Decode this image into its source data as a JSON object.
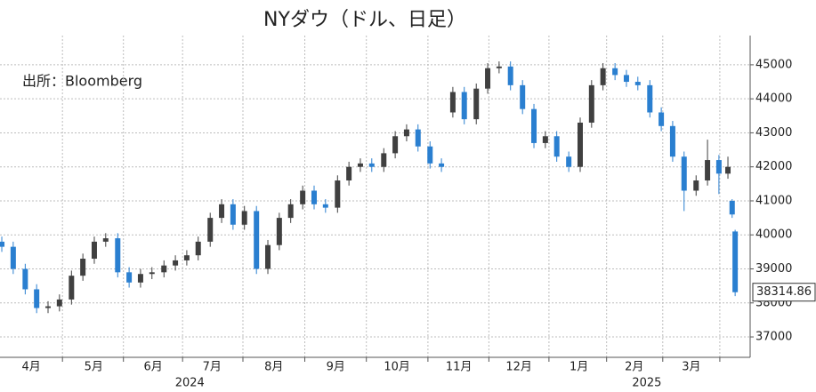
{
  "chart_data": {
    "type": "candlestick",
    "title": "NYダウ（ドル、日足）",
    "source": "出所：Bloomberg",
    "x": [
      3.01,
      3.2,
      3.4,
      3.59,
      3.78,
      3.97,
      4.17,
      4.36,
      4.55,
      4.74,
      4.94,
      5.13,
      5.32,
      5.51,
      5.71,
      5.9,
      6.09,
      6.28,
      6.48,
      6.67,
      6.86,
      7.05,
      7.25,
      7.44,
      7.63,
      7.82,
      8.02,
      8.21,
      8.4,
      8.6,
      8.79,
      8.98,
      9.17,
      9.37,
      9.56,
      9.75,
      9.94,
      10.14,
      10.33,
      10.52,
      10.71,
      10.91,
      11.1,
      11.29,
      11.48,
      11.68,
      11.87,
      12.06,
      12.25,
      12.45,
      12.64,
      12.83,
      13.02,
      13.22,
      13.41,
      13.6,
      13.8,
      13.99,
      14.18,
      14.37,
      14.57,
      14.76,
      14.95,
      15.1,
      15.17,
      15.22
    ],
    "open": [
      39800,
      39650,
      39000,
      38400,
      37850,
      37900,
      38100,
      38800,
      39300,
      39800,
      39900,
      38900,
      38600,
      38850,
      38900,
      39100,
      39250,
      39400,
      39800,
      40500,
      40900,
      40300,
      40700,
      39000,
      39700,
      40500,
      40900,
      41300,
      40900,
      40800,
      41600,
      42000,
      42100,
      42000,
      42400,
      42900,
      43100,
      42600,
      42100,
      43600,
      44200,
      43400,
      44300,
      44900,
      44950,
      44400,
      43700,
      42700,
      42900,
      42300,
      42000,
      43300,
      44400,
      44900,
      44700,
      44500,
      44400,
      43600,
      43200,
      42300,
      41300,
      41600,
      42200,
      41800,
      41000,
      40100
    ],
    "high": [
      39950,
      39800,
      39150,
      38550,
      38050,
      38250,
      38950,
      39450,
      39950,
      40050,
      40050,
      39050,
      39000,
      39050,
      39250,
      39400,
      39550,
      39950,
      40650,
      41050,
      41050,
      40850,
      40850,
      39850,
      40650,
      41050,
      41450,
      41450,
      41050,
      41750,
      42150,
      42250,
      42250,
      42550,
      43050,
      43250,
      43250,
      42750,
      42250,
      44350,
      44350,
      44450,
      45050,
      45100,
      45100,
      44550,
      43850,
      43050,
      43050,
      42450,
      43450,
      44550,
      45050,
      45050,
      44850,
      44650,
      44550,
      43750,
      43350,
      42450,
      41750,
      42800,
      42350,
      42300,
      41050,
      40150
    ],
    "low": [
      39500,
      38850,
      38250,
      37700,
      37700,
      37750,
      37950,
      38650,
      39150,
      39650,
      38750,
      38450,
      38450,
      38700,
      38750,
      38950,
      39100,
      39250,
      39650,
      40350,
      40150,
      40150,
      38850,
      38850,
      39550,
      40350,
      40750,
      40750,
      40650,
      40650,
      41450,
      41850,
      41850,
      41850,
      42250,
      42750,
      42450,
      41950,
      41850,
      43450,
      43250,
      43250,
      44150,
      44750,
      44250,
      43550,
      42550,
      42550,
      42150,
      41850,
      41850,
      43150,
      44250,
      44550,
      44350,
      44250,
      43450,
      43050,
      42150,
      40700,
      41150,
      41450,
      41200,
      41650,
      40500,
      38200
    ],
    "close": [
      39650,
      39000,
      38400,
      37850,
      37900,
      38100,
      38800,
      39300,
      39800,
      39900,
      38900,
      38600,
      38850,
      38900,
      39100,
      39250,
      39400,
      39800,
      40500,
      40900,
      40300,
      40700,
      39000,
      39700,
      40500,
      40900,
      41300,
      40900,
      40800,
      41600,
      42000,
      42100,
      42000,
      42400,
      42900,
      43100,
      42600,
      42100,
      42000,
      44200,
      43400,
      44300,
      44900,
      44950,
      44400,
      43700,
      42700,
      42900,
      42300,
      42000,
      43300,
      44400,
      44900,
      44700,
      44500,
      44400,
      43600,
      43200,
      42300,
      41300,
      41600,
      42200,
      41800,
      42000,
      40600,
      38314.86
    ],
    "up_color": "#404040",
    "down_color": "#2a7fd0",
    "xlim": [
      2.98,
      15.47
    ],
    "ylim": [
      36400,
      45860
    ],
    "yticks": [
      37000,
      38000,
      39000,
      40000,
      41000,
      42000,
      43000,
      44000,
      45000
    ],
    "xticks": [
      {
        "value": 3.5,
        "label": "4月"
      },
      {
        "value": 4.54,
        "label": "5月"
      },
      {
        "value": 5.53,
        "label": "6月"
      },
      {
        "value": 6.51,
        "label": "7月"
      },
      {
        "value": 7.54,
        "label": "8月"
      },
      {
        "value": 8.57,
        "label": "9月"
      },
      {
        "value": 9.59,
        "label": "10月"
      },
      {
        "value": 10.62,
        "label": "11月"
      },
      {
        "value": 11.62,
        "label": "12月"
      },
      {
        "value": 12.62,
        "label": "1月"
      },
      {
        "value": 13.54,
        "label": "2月"
      },
      {
        "value": 14.49,
        "label": "3月"
      }
    ],
    "year_ticks": [
      {
        "value": 6.14,
        "label": "2024"
      },
      {
        "value": 13.75,
        "label": "2025"
      }
    ],
    "grid": true
  }
}
